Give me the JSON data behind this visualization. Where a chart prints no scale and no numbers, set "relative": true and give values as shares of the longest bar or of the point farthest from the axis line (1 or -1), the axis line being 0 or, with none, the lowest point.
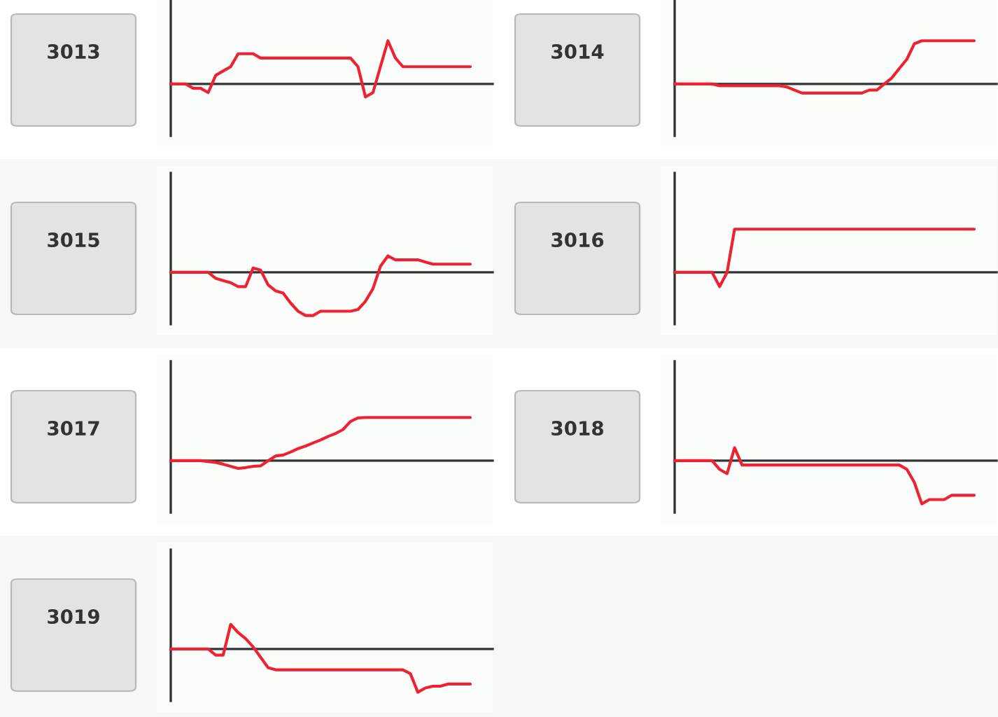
{
  "chart_data": [
    {
      "type": "line",
      "title": "3013",
      "relative": true,
      "categories": [
        null,
        null,
        null,
        null,
        null,
        null,
        null,
        null,
        null,
        null,
        null,
        null,
        null,
        null,
        null,
        null,
        null,
        null,
        null,
        null,
        null,
        null,
        null,
        null,
        null,
        null,
        null,
        null,
        null,
        null,
        null,
        null,
        null,
        null,
        null,
        null,
        null,
        null,
        null,
        null,
        null
      ],
      "series": [
        {
          "color": "#ee2233",
          "values": [
            0,
            0,
            0,
            -0.1,
            -0.1,
            -0.2,
            0.2,
            0.3,
            0.4,
            0.7,
            0.7,
            0.7,
            0.6,
            0.6,
            0.6,
            0.6,
            0.6,
            0.6,
            0.6,
            0.6,
            0.6,
            0.6,
            0.6,
            0.6,
            0.6,
            0.4,
            -0.3,
            -0.2,
            0.4,
            1,
            0.6,
            0.4,
            0.4,
            0.4,
            0.4,
            0.4,
            0.4,
            0.4,
            0.4,
            0.4,
            0.4
          ]
        }
      ]
    },
    {
      "type": "line",
      "title": "3014",
      "relative": true,
      "categories": [
        null,
        null,
        null,
        null,
        null,
        null,
        null,
        null,
        null,
        null,
        null,
        null,
        null,
        null,
        null,
        null,
        null,
        null,
        null,
        null,
        null,
        null,
        null,
        null,
        null,
        null,
        null,
        null,
        null,
        null,
        null,
        null,
        null,
        null,
        null,
        null,
        null,
        null,
        null,
        null,
        null
      ],
      "series": [
        {
          "color": "#ee2233",
          "values": [
            0,
            0,
            0,
            0,
            0,
            0,
            -0.04,
            -0.04,
            -0.04,
            -0.04,
            -0.04,
            -0.04,
            -0.04,
            -0.04,
            -0.04,
            -0.07,
            -0.14,
            -0.21,
            -0.21,
            -0.21,
            -0.21,
            -0.21,
            -0.21,
            -0.21,
            -0.21,
            -0.21,
            -0.14,
            -0.14,
            0,
            0.14,
            0.36,
            0.57,
            0.93,
            1,
            1,
            1,
            1,
            1,
            1,
            1,
            1
          ]
        }
      ]
    },
    {
      "type": "line",
      "title": "3015",
      "relative": true,
      "categories": [
        null,
        null,
        null,
        null,
        null,
        null,
        null,
        null,
        null,
        null,
        null,
        null,
        null,
        null,
        null,
        null,
        null,
        null,
        null,
        null,
        null,
        null,
        null,
        null,
        null,
        null,
        null,
        null,
        null,
        null,
        null,
        null,
        null,
        null,
        null,
        null,
        null,
        null,
        null,
        null,
        null
      ],
      "series": [
        {
          "color": "#ee2233",
          "values": [
            0,
            0,
            0,
            0,
            0,
            0,
            -0.14,
            -0.19,
            -0.24,
            -0.33,
            -0.33,
            0.1,
            0.05,
            -0.29,
            -0.43,
            -0.48,
            -0.71,
            -0.9,
            -1,
            -1,
            -0.9,
            -0.9,
            -0.9,
            -0.9,
            -0.9,
            -0.86,
            -0.67,
            -0.38,
            0.14,
            0.38,
            0.29,
            0.29,
            0.29,
            0.29,
            0.24,
            0.19,
            0.19,
            0.19,
            0.19,
            0.19,
            0.19
          ]
        }
      ]
    },
    {
      "type": "line",
      "title": "3016",
      "relative": true,
      "categories": [
        null,
        null,
        null,
        null,
        null,
        null,
        null,
        null,
        null,
        null,
        null,
        null,
        null,
        null,
        null,
        null,
        null,
        null,
        null,
        null,
        null,
        null,
        null,
        null,
        null,
        null,
        null,
        null,
        null,
        null,
        null,
        null,
        null,
        null,
        null,
        null,
        null,
        null,
        null,
        null,
        null
      ],
      "series": [
        {
          "color": "#ee2233",
          "values": [
            0,
            0,
            0,
            0,
            0,
            0,
            -0.33,
            0,
            1,
            1,
            1,
            1,
            1,
            1,
            1,
            1,
            1,
            1,
            1,
            1,
            1,
            1,
            1,
            1,
            1,
            1,
            1,
            1,
            1,
            1,
            1,
            1,
            1,
            1,
            1,
            1,
            1,
            1,
            1,
            1,
            1
          ]
        }
      ]
    },
    {
      "type": "line",
      "title": "3017",
      "relative": true,
      "categories": [
        null,
        null,
        null,
        null,
        null,
        null,
        null,
        null,
        null,
        null,
        null,
        null,
        null,
        null,
        null,
        null,
        null,
        null,
        null,
        null,
        null,
        null,
        null,
        null,
        null,
        null,
        null,
        null,
        null,
        null,
        null,
        null,
        null,
        null,
        null,
        null,
        null,
        null,
        null,
        null,
        null
      ],
      "series": [
        {
          "color": "#ee2233",
          "values": [
            0,
            0,
            0,
            0,
            0,
            -0.02,
            -0.04,
            -0.08,
            -0.13,
            -0.18,
            -0.16,
            -0.13,
            -0.12,
            0,
            0.11,
            0.13,
            0.2,
            0.28,
            0.34,
            0.41,
            0.48,
            0.56,
            0.63,
            0.72,
            0.91,
            0.99,
            1,
            1,
            1,
            1,
            1,
            1,
            1,
            1,
            1,
            1,
            1,
            1,
            1,
            1,
            1
          ]
        }
      ]
    },
    {
      "type": "line",
      "title": "3018",
      "relative": true,
      "categories": [
        null,
        null,
        null,
        null,
        null,
        null,
        null,
        null,
        null,
        null,
        null,
        null,
        null,
        null,
        null,
        null,
        null,
        null,
        null,
        null,
        null,
        null,
        null,
        null,
        null,
        null,
        null,
        null,
        null,
        null,
        null,
        null,
        null,
        null,
        null,
        null,
        null,
        null,
        null,
        null,
        null
      ],
      "series": [
        {
          "color": "#ee2233",
          "values": [
            0,
            0,
            0,
            0,
            0,
            0,
            -0.2,
            -0.3,
            0.3,
            -0.1,
            -0.1,
            -0.1,
            -0.1,
            -0.1,
            -0.1,
            -0.1,
            -0.1,
            -0.1,
            -0.1,
            -0.1,
            -0.1,
            -0.1,
            -0.1,
            -0.1,
            -0.1,
            -0.1,
            -0.1,
            -0.1,
            -0.1,
            -0.1,
            -0.1,
            -0.2,
            -0.5,
            -1,
            -0.9,
            -0.9,
            -0.9,
            -0.8,
            -0.8,
            -0.8,
            -0.8
          ]
        }
      ]
    },
    {
      "type": "line",
      "title": "3019",
      "relative": true,
      "categories": [
        null,
        null,
        null,
        null,
        null,
        null,
        null,
        null,
        null,
        null,
        null,
        null,
        null,
        null,
        null,
        null,
        null,
        null,
        null,
        null,
        null,
        null,
        null,
        null,
        null,
        null,
        null,
        null,
        null,
        null,
        null,
        null,
        null,
        null,
        null,
        null,
        null,
        null,
        null,
        null,
        null
      ],
      "series": [
        {
          "color": "#ee2233",
          "values": [
            0,
            0,
            0,
            0,
            0,
            0,
            -0.14,
            -0.14,
            0.57,
            0.38,
            0.24,
            0.05,
            -0.19,
            -0.43,
            -0.48,
            -0.48,
            -0.48,
            -0.48,
            -0.48,
            -0.48,
            -0.48,
            -0.48,
            -0.48,
            -0.48,
            -0.48,
            -0.48,
            -0.48,
            -0.48,
            -0.48,
            -0.48,
            -0.48,
            -0.48,
            -0.57,
            -1,
            -0.9,
            -0.86,
            -0.86,
            -0.81,
            -0.81,
            -0.81,
            -0.81
          ]
        }
      ]
    }
  ]
}
